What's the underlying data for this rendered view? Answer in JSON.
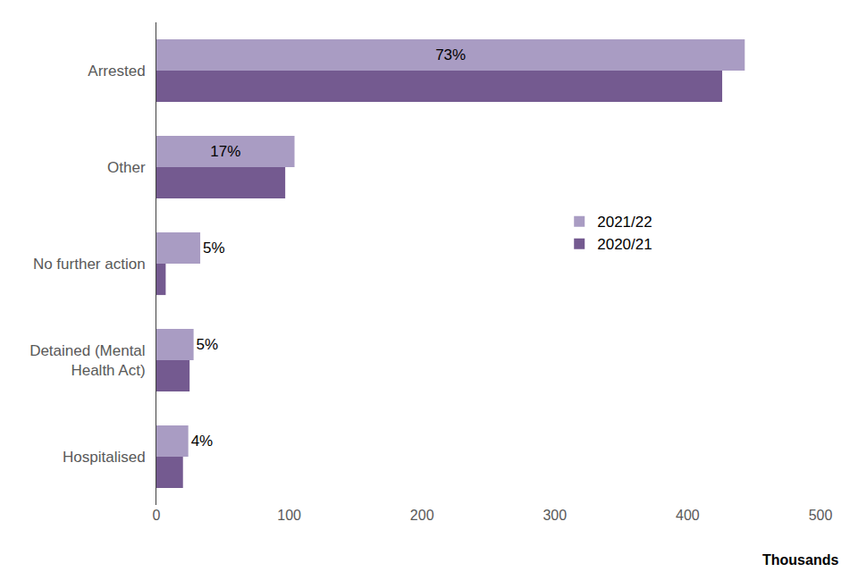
{
  "chart_data": {
    "type": "bar",
    "orientation": "horizontal",
    "categories": [
      "Arrested",
      "Other",
      "No further action",
      "Detained (Mental Health Act)",
      "Hospitalised"
    ],
    "series": [
      {
        "name": "2021/22",
        "color": "#a99cc3",
        "values": [
          443,
          104,
          33,
          28,
          24
        ]
      },
      {
        "name": "2020/21",
        "color": "#745a90",
        "values": [
          426,
          97,
          7,
          25,
          20
        ]
      }
    ],
    "annotations": [
      {
        "category": "Arrested",
        "series": "2021/22",
        "text": "73%"
      },
      {
        "category": "Other",
        "series": "2021/22",
        "text": "17%"
      },
      {
        "category": "No further action",
        "series": "2021/22",
        "text": "5%"
      },
      {
        "category": "Detained (Mental Health Act)",
        "series": "2021/22",
        "text": "5%"
      },
      {
        "category": "Hospitalised",
        "series": "2021/22",
        "text": "4%"
      }
    ],
    "x_label": "Thousands",
    "xlim": [
      0,
      500
    ],
    "xticks": [
      0,
      100,
      200,
      300,
      400,
      500
    ],
    "grid": false,
    "legend": "right",
    "data_labels": false
  }
}
